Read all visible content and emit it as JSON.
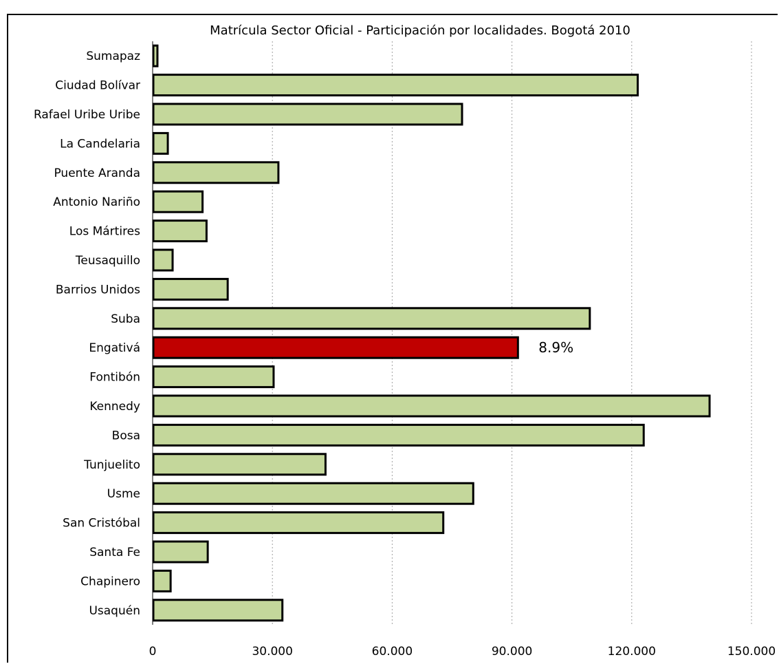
{
  "chart_data": {
    "type": "bar",
    "orientation": "horizontal",
    "title": "Matrícula Sector Oficial - Participación por localidades.  Bogotá 2010",
    "xlabel": "",
    "ylabel": "",
    "xlim": [
      0,
      150000
    ],
    "xticks": [
      0,
      30000,
      60000,
      90000,
      120000,
      150000
    ],
    "xtick_labels": [
      "0",
      "30.000",
      "60.000",
      "90.000",
      "120.000",
      "150.000"
    ],
    "grid": "vertical dotted",
    "categories": [
      "Sumapaz",
      "Ciudad Bolívar",
      "Rafael Uribe Uribe",
      "La Candelaria",
      "Puente Aranda",
      "Antonio Nariño",
      "Los Mártires",
      "Teusaquillo",
      "Barrios Unidos",
      "Suba",
      "Engativá",
      "Fontibón",
      "Kennedy",
      "Bosa",
      "Tunjuelito",
      "Usme",
      "San Cristóbal",
      "Santa Fe",
      "Chapinero",
      "Usaquén"
    ],
    "values": [
      1200,
      121500,
      77500,
      3800,
      31500,
      12500,
      13500,
      5000,
      18800,
      109500,
      91500,
      30300,
      139500,
      123000,
      43300,
      80300,
      72800,
      13800,
      4500,
      32500
    ],
    "highlight_index": 10,
    "data_labels": [
      {
        "index": 10,
        "text": "8.9%"
      }
    ],
    "colors": {
      "bar": "#c4d79b",
      "highlight": "#c00000",
      "edge": "#000000",
      "grid": "#a0a0a0"
    }
  }
}
